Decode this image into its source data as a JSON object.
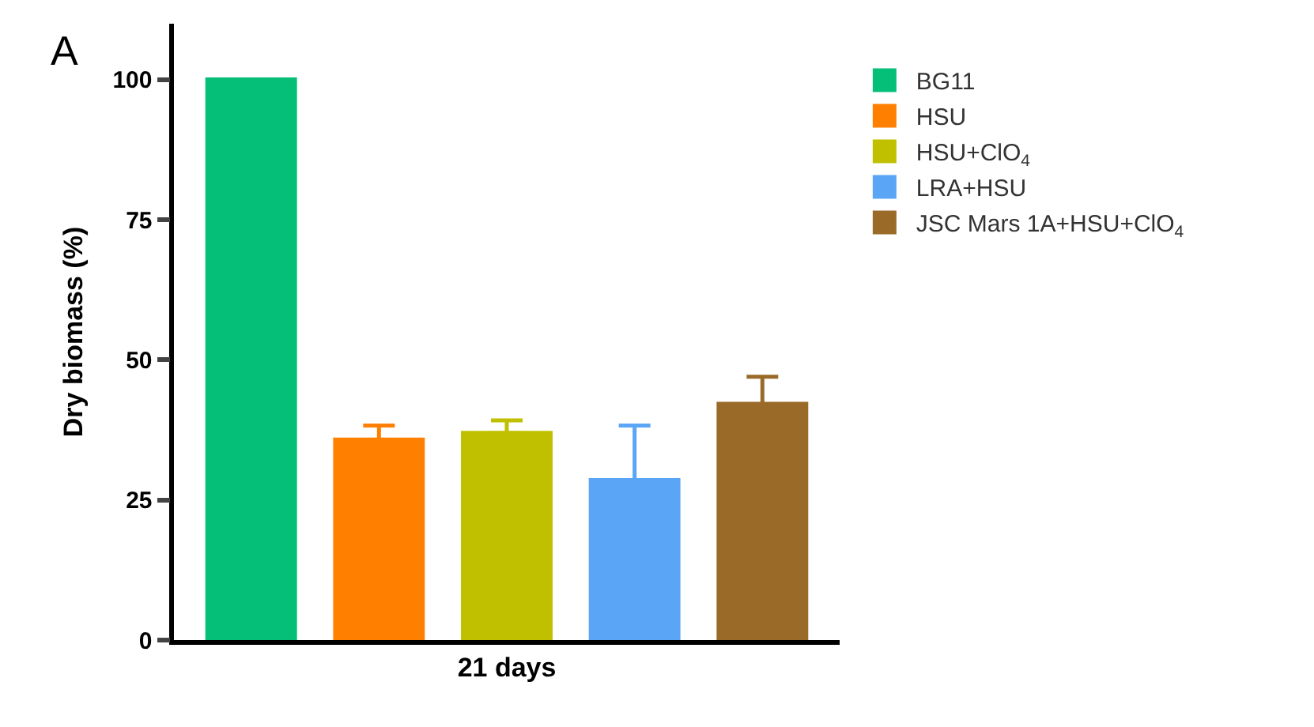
{
  "chart_data": {
    "type": "bar",
    "ylabel": "Dry biomass (%)",
    "categories": [
      "21 days"
    ],
    "ylim": [
      0,
      110
    ],
    "yticks": [
      0,
      25,
      50,
      75,
      100
    ],
    "legend": "right",
    "annotations": [
      "A"
    ],
    "series": [
      {
        "name": "BG11",
        "color": "#05bf78",
        "values": [
          100
        ]
      },
      {
        "name": "HSU",
        "color": "#ff7f00",
        "values": [
          35.7
        ],
        "errors": [
          [
            35.7,
            38.3
          ]
        ]
      },
      {
        "name": "HSU+ClO$_{4}$",
        "color": "#c0c000",
        "values": [
          36.9
        ],
        "errors": [
          [
            36.9,
            39.2
          ]
        ]
      },
      {
        "name": "LRA+HSU",
        "color": "#5aa5f5",
        "values": [
          28.5
        ],
        "errors": [
          [
            28.5,
            38.3
          ]
        ]
      },
      {
        "name": "JSC Mars 1A+HSU+ClO$_{4}$",
        "color": "#9a6a28",
        "values": [
          42.1
        ],
        "errors": [
          [
            42.1,
            47.0
          ]
        ]
      }
    ]
  }
}
